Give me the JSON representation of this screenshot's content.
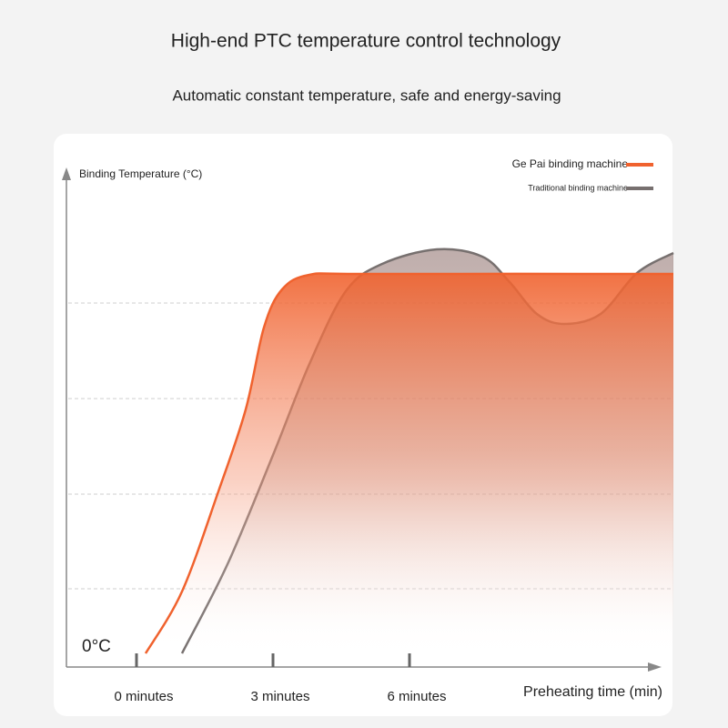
{
  "chart_data": {
    "type": "line",
    "title": "High-end PTC temperature control technology",
    "subtitle": "Automatic constant temperature, safe and energy-saving",
    "y_label": "Binding Temperature (°C)",
    "x_label": "Preheating time (min)",
    "xlim": [
      -1.5,
      11.8
    ],
    "xticks": [
      {
        "value": 0,
        "label": "0 minutes"
      },
      {
        "value": 3,
        "label": "3 minutes"
      },
      {
        "value": 6,
        "label": "6 minutes"
      }
    ],
    "ylim": [
      0,
      100
    ],
    "yticks": [
      {
        "value": 0,
        "label": "0°C"
      }
    ],
    "legend_position": "top-right",
    "series": [
      {
        "name": "Ge Pai binding machine",
        "color": "#f0622e",
        "x": [
          0.2,
          1.0,
          1.8,
          2.4,
          2.8,
          3.2,
          3.8,
          5.0,
          11.8
        ],
        "values": [
          0,
          13.6,
          35.6,
          53.6,
          71.6,
          80,
          83.2,
          83.4,
          83.4
        ]
      },
      {
        "name": "Traditional binding machine",
        "color": "#77706f",
        "x": [
          1.0,
          2.0,
          3.0,
          3.8,
          4.6,
          5.4,
          6.6,
          7.6,
          8.2,
          8.8,
          9.4,
          10.2,
          11.0,
          11.8
        ],
        "values": [
          0,
          19.6,
          43.6,
          63.6,
          79.6,
          85.6,
          88.8,
          87.2,
          81.6,
          74.6,
          72.4,
          74.6,
          83.6,
          88
        ]
      }
    ]
  }
}
